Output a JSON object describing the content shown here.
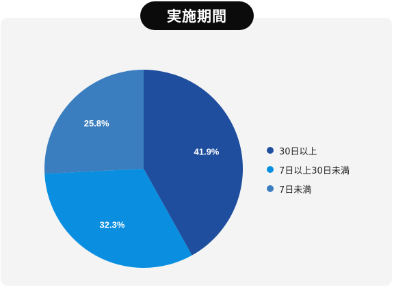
{
  "chart_data": {
    "type": "pie",
    "title": "実施期間",
    "categories": [
      "30日以上",
      "7日以上30日未満",
      "7日未満"
    ],
    "values": [
      41.9,
      32.3,
      25.8
    ],
    "value_labels": [
      "41.9%",
      "32.3%",
      "25.8%"
    ],
    "colors": [
      "#1f4e9e",
      "#0a8fe0",
      "#3a7ec0"
    ],
    "legend_position": "right",
    "start": "12-o'clock",
    "direction": "clockwise"
  }
}
